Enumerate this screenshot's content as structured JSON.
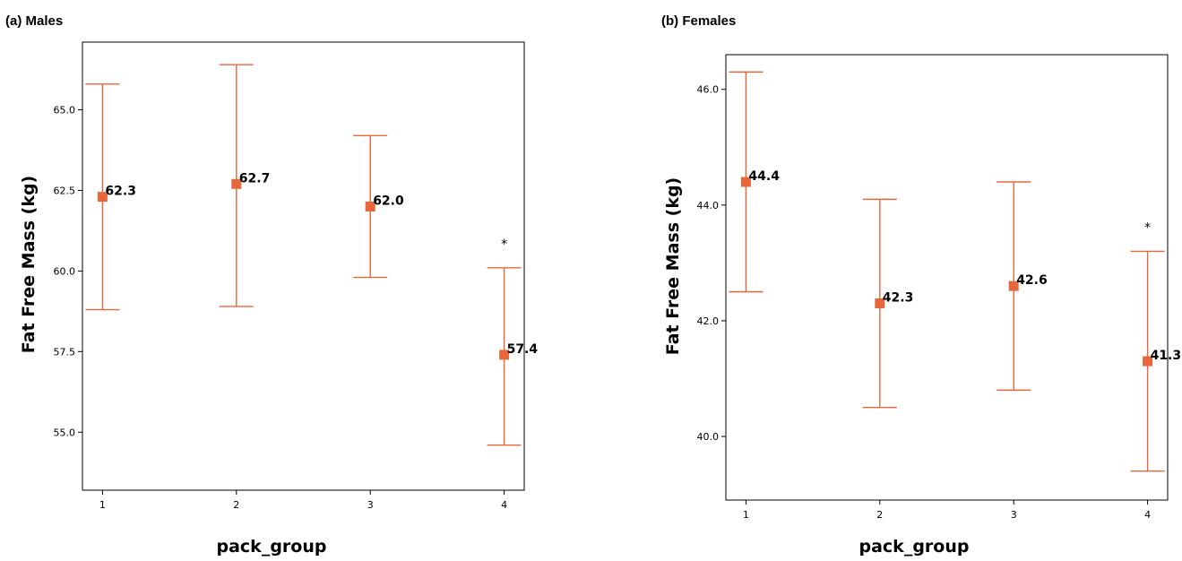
{
  "chart_data": [
    {
      "type": "scatter",
      "title": "(a) Males",
      "xlabel": "pack_group",
      "ylabel": "Fat Free Mass (kg)",
      "categories": [
        "1",
        "2",
        "3",
        "4"
      ],
      "x": [
        1,
        2,
        3,
        4
      ],
      "means": [
        62.3,
        62.7,
        62.0,
        57.4
      ],
      "mean_labels": [
        "62.3",
        "62.7",
        "62.0",
        "57.4"
      ],
      "lower": [
        58.8,
        58.9,
        59.8,
        54.6
      ],
      "upper": [
        65.8,
        66.4,
        64.2,
        60.1
      ],
      "significance": [
        "",
        "",
        "",
        "*"
      ],
      "yticks": [
        55.0,
        57.5,
        60.0,
        62.5,
        65.0
      ],
      "ytick_labels": [
        "55.0",
        "57.5",
        "60.0",
        "62.5",
        "65.0"
      ],
      "ylim": [
        53.2,
        67.1
      ],
      "xlim": [
        0.85,
        4.15
      ],
      "grid": false,
      "color": "#e8663c"
    },
    {
      "type": "scatter",
      "title": "(b) Females",
      "xlabel": "pack_group",
      "ylabel": "Fat Free Mass (kg)",
      "categories": [
        "1",
        "2",
        "3",
        "4"
      ],
      "x": [
        1,
        2,
        3,
        4
      ],
      "means": [
        44.4,
        42.3,
        42.6,
        41.3
      ],
      "mean_labels": [
        "44.4",
        "42.3",
        "42.6",
        "41.3"
      ],
      "lower": [
        42.5,
        40.5,
        40.8,
        39.4
      ],
      "upper": [
        46.3,
        44.1,
        44.4,
        43.2
      ],
      "significance": [
        "",
        "",
        "",
        "*"
      ],
      "yticks": [
        40.0,
        42.0,
        44.0,
        46.0
      ],
      "ytick_labels": [
        "40.0",
        "42.0",
        "44.0",
        "46.0"
      ],
      "ylim": [
        38.9,
        46.6
      ],
      "xlim": [
        0.85,
        4.15
      ],
      "grid": false,
      "color": "#e8663c"
    }
  ]
}
